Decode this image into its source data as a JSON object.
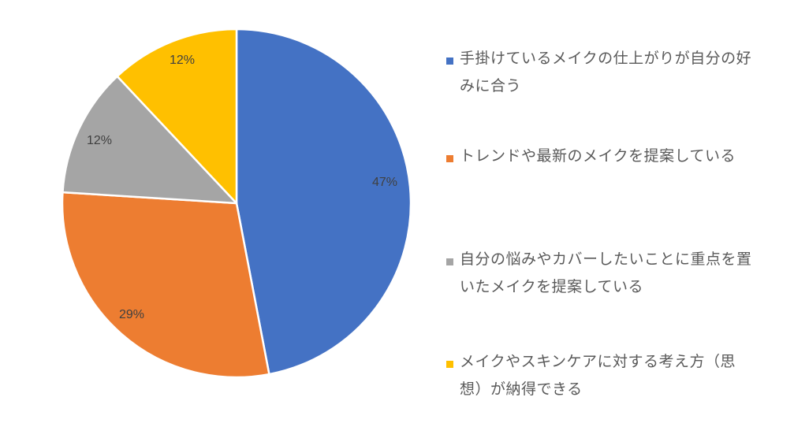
{
  "chart_data": {
    "type": "pie",
    "title": "",
    "categories": [
      "手掛けているメイクの仕上がりが自分の好みに合う",
      "トレンドや最新のメイクを提案している",
      "自分の悩みやカバーしたいことに重点を置いたメイクを提案している",
      "メイクやスキンケアに対する考え方（思想）が納得できる"
    ],
    "values": [
      47,
      29,
      12,
      12
    ],
    "labels": [
      "47%",
      "29%",
      "12%",
      "12%"
    ],
    "colors": [
      "#4472C4",
      "#ED7D31",
      "#A5A5A5",
      "#FFC000"
    ],
    "start_angle_deg": 0,
    "direction": "clockwise",
    "legend_position": "right"
  },
  "legend": {
    "items": [
      {
        "line1": "手掛けているメイクの仕上がりが自分の好",
        "line2": "みに合う"
      },
      {
        "line1": "トレンドや最新のメイクを提案している",
        "line2": ""
      },
      {
        "line1": "自分の悩みやカバーしたいことに重点を置",
        "line2": "いたメイクを提案している"
      },
      {
        "line1": "メイクやスキンケアに対する考え方（思",
        "line2": "想）が納得できる"
      }
    ]
  }
}
